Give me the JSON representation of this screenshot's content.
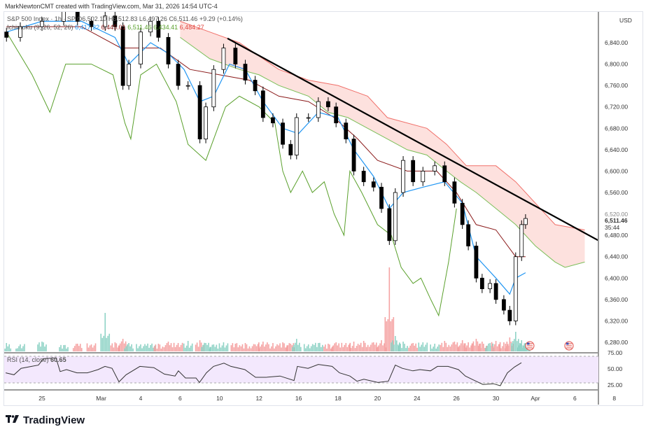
{
  "credit": "MarkNewtonCMT created with TradingView.com, Mar 31, 2026 14:54 UTC-4",
  "legend": {
    "symbol": "S&P 500 Index · 1h · SP",
    "open": "O6,502.10",
    "high": "H6,512.83",
    "low": "L6,497.26",
    "close": "C6,511.46",
    "change": "+9.29 (+0.14%)",
    "ichimoku_label": "Ichimoku (9, 26, 52, 26)",
    "ichimoku_values": [
      "6,417.22",
      "6,445.01",
      "6,511.46",
      "6,434.41",
      "6,484.27"
    ]
  },
  "rsi": {
    "label": "RSI (14, close)",
    "value": "60.65",
    "ticks": [
      "75.00",
      "50.00",
      "25.00"
    ]
  },
  "price_axis": {
    "currency": "USD",
    "ticks": [
      "6,840.00",
      "6,800.00",
      "6,760.00",
      "6,720.00",
      "6,680.00",
      "6,640.00",
      "6,600.00",
      "6,560.00",
      "6,520.00",
      "6,480.00",
      "6,440.00",
      "6,400.00",
      "6,360.00",
      "6,320.00",
      "6,280.00"
    ],
    "last_price": "6,511.46",
    "countdown": "35:44"
  },
  "time_axis": [
    "25",
    "Mar",
    "4",
    "6",
    "10",
    "12",
    "16",
    "18",
    "20",
    "24",
    "26",
    "30",
    "Apr",
    "6",
    "8"
  ],
  "brand": "TradingView",
  "chart_data": {
    "type": "candlestick",
    "title": "S&P 500 Index",
    "x_unit": "trading sessions from Feb 25",
    "ylim": [
      6260,
      6900
    ],
    "colors": {
      "up": "#ffffff",
      "down": "#000000",
      "tenkan": "#2196f3",
      "kijun": "#8b1a1a",
      "lagging": "#5aa02c",
      "span_a": "#7cbf5a",
      "span_b": "#f0706a",
      "cloud": "#fcd9d6",
      "volume_up": "#8fd3c6",
      "volume_down": "#f5a3a3",
      "rsi": "#333333",
      "rsi_band": "#f3e8fd",
      "trendline": "#000000"
    },
    "closes": [
      [
        -1.8,
        6850
      ],
      [
        -1.1,
        6870
      ],
      [
        0,
        6880
      ],
      [
        1.1,
        6900
      ],
      [
        1.8,
        6880
      ],
      [
        2.5,
        6870
      ],
      [
        3.2,
        6890
      ],
      [
        3.7,
        6870
      ],
      [
        4.1,
        6760
      ],
      [
        4.4,
        6800
      ],
      [
        5.0,
        6860
      ],
      [
        5.5,
        6880
      ],
      [
        5.9,
        6850
      ],
      [
        6.4,
        6800
      ],
      [
        6.9,
        6760
      ],
      [
        7.4,
        6760
      ],
      [
        8.0,
        6660
      ],
      [
        8.3,
        6720
      ],
      [
        8.7,
        6790
      ],
      [
        9.2,
        6830
      ],
      [
        9.8,
        6800
      ],
      [
        10.3,
        6770
      ],
      [
        10.8,
        6750
      ],
      [
        11.2,
        6700
      ],
      [
        11.7,
        6690
      ],
      [
        12.2,
        6650
      ],
      [
        12.6,
        6630
      ],
      [
        12.9,
        6700
      ],
      [
        13.5,
        6700
      ],
      [
        14.0,
        6730
      ],
      [
        14.5,
        6720
      ],
      [
        14.9,
        6690
      ],
      [
        15.4,
        6660
      ],
      [
        15.8,
        6600
      ],
      [
        16.3,
        6580
      ],
      [
        16.8,
        6570
      ],
      [
        17.2,
        6530
      ],
      [
        17.6,
        6470
      ],
      [
        17.9,
        6560
      ],
      [
        18.3,
        6620
      ],
      [
        18.8,
        6580
      ],
      [
        19.3,
        6600
      ],
      [
        19.9,
        6610
      ],
      [
        20.4,
        6580
      ],
      [
        20.9,
        6540
      ],
      [
        21.3,
        6500
      ],
      [
        21.6,
        6460
      ],
      [
        22.0,
        6400
      ],
      [
        22.3,
        6380
      ],
      [
        22.7,
        6390
      ],
      [
        23.0,
        6360
      ],
      [
        23.4,
        6340
      ],
      [
        23.7,
        6320
      ],
      [
        24.0,
        6440
      ],
      [
        24.3,
        6500
      ],
      [
        24.5,
        6511.46
      ]
    ],
    "volume": [
      12,
      10,
      14,
      9,
      11,
      10,
      55,
      13,
      18,
      12,
      10,
      9,
      11,
      14,
      12,
      15,
      16,
      12,
      10,
      13,
      11,
      12,
      10,
      14,
      12,
      13,
      11,
      18,
      10,
      12,
      11,
      13,
      12,
      14,
      15,
      13,
      16,
      120,
      22,
      14,
      12,
      13,
      11,
      15,
      14,
      16,
      13,
      18,
      14,
      12,
      15,
      13,
      20,
      28,
      16,
      12
    ],
    "tenkan": [
      [
        -1.8,
        6860
      ],
      [
        0,
        6880
      ],
      [
        2,
        6880
      ],
      [
        3.7,
        6850
      ],
      [
        4.4,
        6800
      ],
      [
        5.5,
        6840
      ],
      [
        6.4,
        6820
      ],
      [
        7.2,
        6790
      ],
      [
        8.0,
        6730
      ],
      [
        8.7,
        6740
      ],
      [
        9.5,
        6800
      ],
      [
        10.3,
        6790
      ],
      [
        11.2,
        6730
      ],
      [
        12.2,
        6680
      ],
      [
        13.0,
        6670
      ],
      [
        14,
        6710
      ],
      [
        15,
        6700
      ],
      [
        15.8,
        6640
      ],
      [
        16.8,
        6590
      ],
      [
        17.6,
        6530
      ],
      [
        18.3,
        6560
      ],
      [
        19.3,
        6570
      ],
      [
        20.4,
        6580
      ],
      [
        21.3,
        6540
      ],
      [
        22,
        6440
      ],
      [
        23,
        6400
      ],
      [
        23.7,
        6370
      ],
      [
        24.0,
        6400
      ],
      [
        24.5,
        6410
      ]
    ],
    "kijun": [
      [
        -1.8,
        6870
      ],
      [
        2,
        6870
      ],
      [
        4,
        6830
      ],
      [
        6,
        6830
      ],
      [
        7.5,
        6790
      ],
      [
        9,
        6780
      ],
      [
        10.5,
        6770
      ],
      [
        12,
        6740
      ],
      [
        13.5,
        6730
      ],
      [
        14.8,
        6700
      ],
      [
        16,
        6660
      ],
      [
        17,
        6620
      ],
      [
        18.5,
        6600
      ],
      [
        20,
        6600
      ],
      [
        21,
        6560
      ],
      [
        22,
        6500
      ],
      [
        23,
        6490
      ],
      [
        24,
        6440
      ],
      [
        24.5,
        6440
      ]
    ],
    "lagging": [
      [
        -1.8,
        6860
      ],
      [
        -0.5,
        6780
      ],
      [
        0.4,
        6710
      ],
      [
        1.2,
        6800
      ],
      [
        2.5,
        6800
      ],
      [
        3.6,
        6780
      ],
      [
        4.2,
        6690
      ],
      [
        4.5,
        6660
      ],
      [
        5,
        6780
      ],
      [
        5.8,
        6800
      ],
      [
        6.8,
        6730
      ],
      [
        7.4,
        6650
      ],
      [
        8.3,
        6620
      ],
      [
        9.3,
        6720
      ],
      [
        10,
        6740
      ],
      [
        11,
        6720
      ],
      [
        11.8,
        6690
      ],
      [
        12.2,
        6600
      ],
      [
        12.6,
        6560
      ],
      [
        13.2,
        6600
      ],
      [
        13.7,
        6560
      ],
      [
        14.3,
        6580
      ],
      [
        14.8,
        6520
      ],
      [
        15.3,
        6480
      ],
      [
        15.6,
        6600
      ],
      [
        16.2,
        6560
      ],
      [
        17,
        6500
      ],
      [
        17.7,
        6480
      ],
      [
        18.2,
        6420
      ],
      [
        18.8,
        6390
      ],
      [
        19.2,
        6400
      ],
      [
        19.7,
        6360
      ],
      [
        20.1,
        6330
      ],
      [
        20.6,
        6430
      ],
      [
        21.0,
        6530
      ]
    ],
    "span_b": [
      [
        7,
        6880
      ],
      [
        8.5,
        6860
      ],
      [
        10,
        6840
      ],
      [
        12,
        6790
      ],
      [
        13.5,
        6770
      ],
      [
        15,
        6760
      ],
      [
        16.5,
        6740
      ],
      [
        17.5,
        6700
      ],
      [
        19.5,
        6680
      ],
      [
        20.5,
        6650
      ],
      [
        21.5,
        6610
      ],
      [
        23,
        6610
      ],
      [
        24,
        6580
      ],
      [
        25,
        6540
      ],
      [
        26,
        6500
      ],
      [
        27.5,
        6490
      ]
    ],
    "span_a": [
      [
        7,
        6850
      ],
      [
        8.5,
        6810
      ],
      [
        10,
        6790
      ],
      [
        11,
        6780
      ],
      [
        12,
        6760
      ],
      [
        13.5,
        6740
      ],
      [
        14.5,
        6710
      ],
      [
        15.5,
        6700
      ],
      [
        16.5,
        6680
      ],
      [
        17.5,
        6660
      ],
      [
        18.5,
        6640
      ],
      [
        19.5,
        6630
      ],
      [
        20.5,
        6600
      ],
      [
        21.2,
        6580
      ],
      [
        22,
        6560
      ],
      [
        23,
        6530
      ],
      [
        24,
        6500
      ],
      [
        25,
        6460
      ],
      [
        26,
        6430
      ],
      [
        26.5,
        6420
      ],
      [
        27.5,
        6430
      ]
    ],
    "trendline": [
      [
        9.4,
        6848
      ],
      [
        29.1,
        6452
      ]
    ],
    "rsi": [
      [
        -1.84,
        45
      ],
      [
        -1.42,
        42
      ],
      [
        -1.06,
        52
      ],
      [
        -0.53,
        55
      ],
      [
        -0.18,
        57
      ],
      [
        0.07,
        67
      ],
      [
        0.71,
        68
      ],
      [
        0.92,
        47
      ],
      [
        1.24,
        50
      ],
      [
        1.77,
        45
      ],
      [
        2.3,
        45
      ],
      [
        2.84,
        50
      ],
      [
        3.19,
        55
      ],
      [
        3.55,
        52
      ],
      [
        3.9,
        31
      ],
      [
        4.26,
        42
      ],
      [
        4.96,
        55
      ],
      [
        5.67,
        53
      ],
      [
        6.2,
        43
      ],
      [
        6.74,
        40
      ],
      [
        6.91,
        48
      ],
      [
        7.27,
        37
      ],
      [
        7.8,
        37
      ],
      [
        7.98,
        30
      ],
      [
        8.33,
        45
      ],
      [
        8.69,
        55
      ],
      [
        9.22,
        60
      ],
      [
        9.57,
        55
      ],
      [
        10.28,
        50
      ],
      [
        10.82,
        38
      ],
      [
        11.35,
        38
      ],
      [
        12.06,
        40
      ],
      [
        12.77,
        33
      ],
      [
        12.94,
        55
      ],
      [
        13.48,
        52
      ],
      [
        14.0,
        58
      ],
      [
        14.7,
        55
      ],
      [
        15.07,
        45
      ],
      [
        15.6,
        40
      ],
      [
        15.96,
        32
      ],
      [
        16.31,
        35
      ],
      [
        17.02,
        30
      ],
      [
        17.55,
        32
      ],
      [
        17.9,
        57
      ],
      [
        18.26,
        52
      ],
      [
        18.79,
        48
      ],
      [
        19.15,
        50
      ],
      [
        19.68,
        48
      ],
      [
        20.04,
        55
      ],
      [
        20.57,
        55
      ],
      [
        21.1,
        50
      ],
      [
        21.45,
        40
      ],
      [
        21.99,
        32
      ],
      [
        22.34,
        27
      ],
      [
        22.87,
        28
      ],
      [
        23.22,
        25
      ],
      [
        23.58,
        45
      ],
      [
        23.94,
        54
      ],
      [
        24.29,
        60.65
      ]
    ],
    "event_icons": [
      "us-flag-icon",
      "us-flag-icon"
    ]
  }
}
